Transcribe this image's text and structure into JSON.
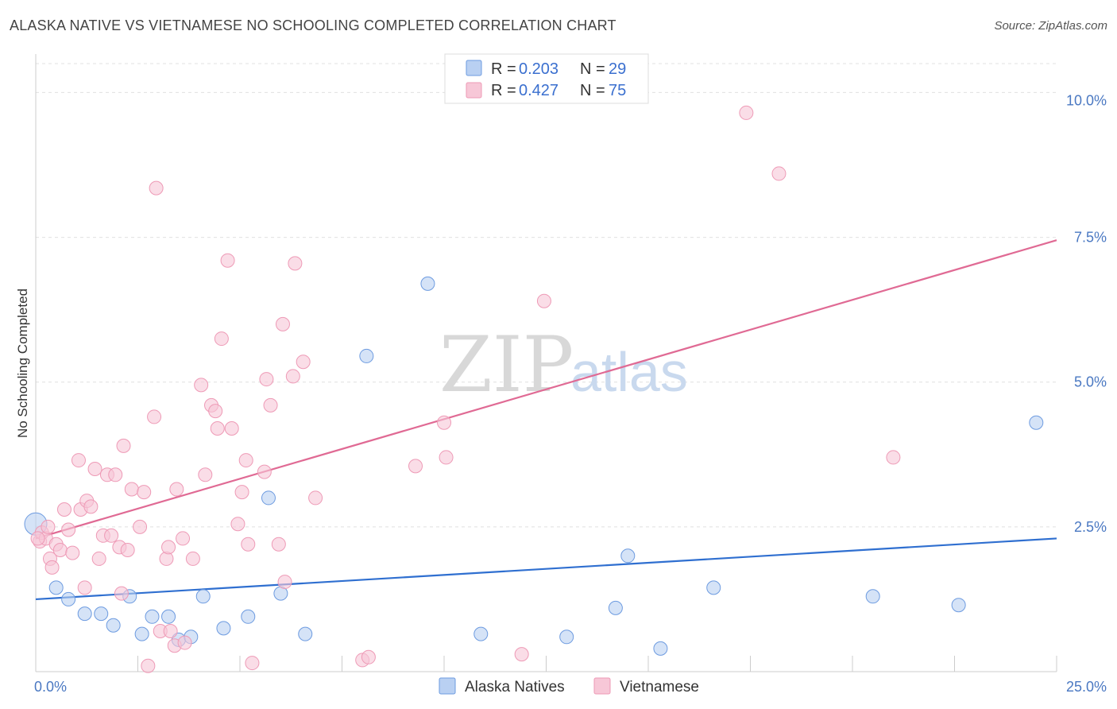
{
  "chart_data": {
    "type": "scatter",
    "title": "ALASKA NATIVE VS VIETNAMESE NO SCHOOLING COMPLETED CORRELATION CHART",
    "source": "Source: ZipAtlas.com",
    "xlabel": "",
    "ylabel": "No Schooling Completed",
    "xlim": [
      0,
      25
    ],
    "ylim": [
      0,
      10.5
    ],
    "x_tick_labels": [
      "0.0%",
      "25.0%"
    ],
    "y_ticks": [
      2.5,
      5.0,
      7.5,
      10.0
    ],
    "y_tick_labels": [
      "2.5%",
      "5.0%",
      "7.5%",
      "10.0%"
    ],
    "watermark": {
      "zip": "ZIP",
      "atlas": "atlas"
    },
    "legend": {
      "rows": [
        {
          "r_label": "R = ",
          "r_value": "0.203",
          "n_label": "N = ",
          "n_value": "29"
        },
        {
          "r_label": "R = ",
          "r_value": "0.427",
          "n_label": "N = ",
          "n_value": "75"
        }
      ]
    },
    "series": [
      {
        "name": "Alaska Natives",
        "color": "#6d9be0",
        "fill": "#b9d0f2",
        "line_color": "#2f6fd0",
        "trend": {
          "x": [
            0,
            25
          ],
          "y": [
            1.25,
            2.3
          ]
        },
        "points": [
          [
            0.0,
            2.55
          ],
          [
            0.5,
            1.45
          ],
          [
            0.8,
            1.25
          ],
          [
            1.2,
            1.0
          ],
          [
            1.6,
            1.0
          ],
          [
            1.9,
            0.8
          ],
          [
            2.3,
            1.3
          ],
          [
            2.6,
            0.65
          ],
          [
            2.85,
            0.95
          ],
          [
            3.25,
            0.95
          ],
          [
            3.5,
            0.55
          ],
          [
            3.8,
            0.6
          ],
          [
            4.1,
            1.3
          ],
          [
            4.6,
            0.75
          ],
          [
            5.2,
            0.95
          ],
          [
            5.7,
            3.0
          ],
          [
            6.0,
            1.35
          ],
          [
            6.6,
            0.65
          ],
          [
            8.1,
            5.45
          ],
          [
            9.6,
            6.7
          ],
          [
            10.9,
            0.65
          ],
          [
            13.0,
            0.6
          ],
          [
            14.2,
            1.1
          ],
          [
            14.5,
            2.0
          ],
          [
            15.3,
            0.4
          ],
          [
            16.6,
            1.45
          ],
          [
            20.5,
            1.3
          ],
          [
            22.6,
            1.15
          ],
          [
            24.5,
            4.3
          ]
        ]
      },
      {
        "name": "Vietnamese",
        "color": "#ee9ab6",
        "fill": "#f7c7d7",
        "line_color": "#e06a94",
        "trend": {
          "x": [
            0,
            25
          ],
          "y": [
            2.3,
            7.45
          ]
        },
        "points": [
          [
            0.1,
            2.25
          ],
          [
            0.15,
            2.4
          ],
          [
            0.25,
            2.3
          ],
          [
            0.3,
            2.5
          ],
          [
            0.35,
            1.95
          ],
          [
            0.4,
            1.8
          ],
          [
            0.5,
            2.2
          ],
          [
            0.6,
            2.1
          ],
          [
            0.7,
            2.8
          ],
          [
            0.8,
            2.45
          ],
          [
            0.9,
            2.05
          ],
          [
            1.05,
            3.65
          ],
          [
            1.1,
            2.8
          ],
          [
            1.2,
            1.45
          ],
          [
            1.25,
            2.95
          ],
          [
            1.35,
            2.85
          ],
          [
            1.45,
            3.5
          ],
          [
            1.55,
            1.95
          ],
          [
            1.65,
            2.35
          ],
          [
            1.75,
            3.4
          ],
          [
            1.85,
            2.35
          ],
          [
            1.95,
            3.4
          ],
          [
            2.05,
            2.15
          ],
          [
            2.1,
            1.35
          ],
          [
            2.15,
            3.9
          ],
          [
            2.25,
            2.1
          ],
          [
            2.35,
            3.15
          ],
          [
            2.55,
            2.5
          ],
          [
            2.65,
            3.1
          ],
          [
            2.75,
            0.1
          ],
          [
            2.9,
            4.4
          ],
          [
            2.95,
            8.35
          ],
          [
            3.05,
            0.7
          ],
          [
            3.2,
            1.95
          ],
          [
            3.25,
            2.15
          ],
          [
            3.3,
            0.7
          ],
          [
            3.4,
            0.45
          ],
          [
            3.45,
            3.15
          ],
          [
            3.6,
            2.3
          ],
          [
            3.65,
            0.5
          ],
          [
            3.85,
            1.95
          ],
          [
            4.05,
            4.95
          ],
          [
            4.15,
            3.4
          ],
          [
            4.3,
            4.6
          ],
          [
            4.4,
            4.5
          ],
          [
            4.45,
            4.2
          ],
          [
            4.55,
            5.75
          ],
          [
            4.7,
            7.1
          ],
          [
            4.8,
            4.2
          ],
          [
            4.95,
            2.55
          ],
          [
            5.05,
            3.1
          ],
          [
            5.15,
            3.65
          ],
          [
            5.2,
            2.2
          ],
          [
            5.3,
            0.15
          ],
          [
            5.6,
            3.45
          ],
          [
            5.65,
            5.05
          ],
          [
            5.75,
            4.6
          ],
          [
            5.95,
            2.2
          ],
          [
            6.05,
            6.0
          ],
          [
            6.1,
            1.55
          ],
          [
            6.3,
            5.1
          ],
          [
            6.35,
            7.05
          ],
          [
            6.55,
            5.35
          ],
          [
            6.85,
            3.0
          ],
          [
            8.0,
            0.2
          ],
          [
            8.15,
            0.25
          ],
          [
            9.3,
            3.55
          ],
          [
            10.0,
            4.3
          ],
          [
            10.05,
            3.7
          ],
          [
            11.9,
            0.3
          ],
          [
            12.45,
            6.4
          ],
          [
            17.4,
            9.65
          ],
          [
            18.2,
            8.6
          ],
          [
            21.0,
            3.7
          ],
          [
            0.05,
            2.3
          ]
        ]
      }
    ]
  }
}
